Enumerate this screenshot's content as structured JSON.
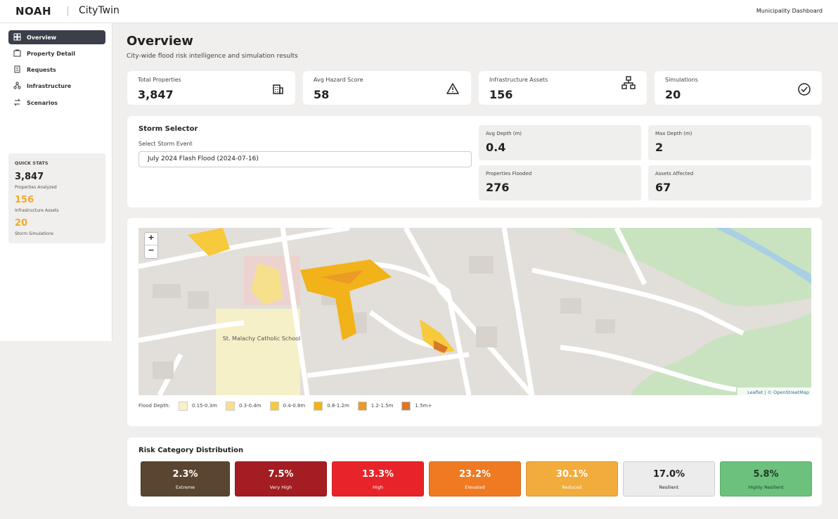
{
  "header": {
    "brand": "NOAH",
    "product": "CityTwin",
    "right": "Municipality Dashboard"
  },
  "nav": [
    "Overview",
    "Property Detail",
    "Requests",
    "Infrastructure",
    "Scenarios"
  ],
  "quick_stats": {
    "title": "QUICK STATS",
    "items": [
      {
        "value": "3,847",
        "label": "Properties Analyzed",
        "color": "#222222"
      },
      {
        "value": "156",
        "label": "Infrastructure Assets",
        "color": "#f0a830"
      },
      {
        "value": "20",
        "label": "Storm Simulations",
        "color": "#f0a830"
      }
    ]
  },
  "page": {
    "title": "Overview",
    "subtitle": "City-wide flood risk intelligence and simulation results"
  },
  "kpis": [
    {
      "label": "Total Properties",
      "value": "3,847"
    },
    {
      "label": "Avg Hazard Score",
      "value": "58"
    },
    {
      "label": "Infrastructure Assets",
      "value": "156"
    },
    {
      "label": "Simulations",
      "value": "20"
    }
  ],
  "storm": {
    "title": "Storm Selector",
    "select_label": "Select Storm Event",
    "selected": "July 2024 Flash Flood (2024-07-16)",
    "stats": [
      {
        "label": "Avg Depth (m)",
        "value": "0.4"
      },
      {
        "label": "Max Depth (m)",
        "value": "2"
      },
      {
        "label": "Properties Flooded",
        "value": "276"
      },
      {
        "label": "Assets Affected",
        "value": "67"
      }
    ]
  },
  "map": {
    "zoom_in": "+",
    "zoom_out": "−",
    "school": "St. Malachy Catholic School",
    "attribution": "Leaflet | © OpenStreetMap",
    "legend_title": "Flood Depth:",
    "legend": [
      {
        "label": "0.15-0.3m",
        "color": "#fbf0c8"
      },
      {
        "label": "0.3-0.4m",
        "color": "#f7e08c"
      },
      {
        "label": "0.4-0.8m",
        "color": "#f6ca3c"
      },
      {
        "label": "0.8-1.2m",
        "color": "#f2b21a"
      },
      {
        "label": "1.2-1.5m",
        "color": "#eb9a26"
      },
      {
        "label": "1.5m+",
        "color": "#d9772a"
      }
    ]
  },
  "risk": {
    "title": "Risk Category Distribution",
    "items": [
      {
        "value": "2.3%",
        "label": "Extreme",
        "color": "#5a4530",
        "text_color": "#ffffff"
      },
      {
        "value": "7.5%",
        "label": "Very High",
        "color": "#a31d22",
        "text_color": "#ffffff"
      },
      {
        "value": "13.3%",
        "label": "High",
        "color": "#e8242a",
        "text_color": "#ffffff"
      },
      {
        "value": "23.2%",
        "label": "Elevated",
        "color": "#ef7a22",
        "text_color": "#ffffff"
      },
      {
        "value": "30.1%",
        "label": "Reduced",
        "color": "#f2ac3c",
        "text_color": "#ffffff"
      },
      {
        "value": "17.0%",
        "label": "Resilient",
        "color": "#ececec",
        "text_color": "#222222"
      },
      {
        "value": "5.8%",
        "label": "Highly Resilient",
        "color": "#6cc27c",
        "text_color": "#1f3d25"
      }
    ]
  }
}
